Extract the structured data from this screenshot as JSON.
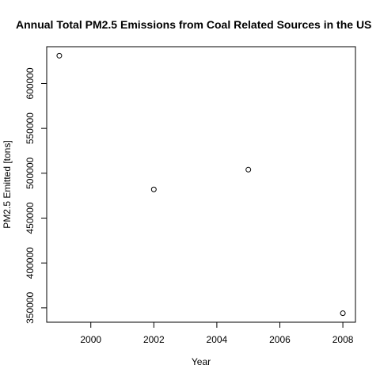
{
  "chart_data": {
    "type": "scatter",
    "title": "Annual Total PM2.5 Emissions from Coal Related Sources in the US",
    "xlabel": "Year",
    "ylabel": "PM2.5 Emitted [tons]",
    "x": [
      1999,
      2002,
      2005,
      2008
    ],
    "y": [
      631000,
      482000,
      504000,
      344000
    ],
    "x_ticks": [
      2000,
      2002,
      2004,
      2006,
      2008
    ],
    "x_tick_labels": [
      "2000",
      "2002",
      "2004",
      "2006",
      "2008"
    ],
    "y_ticks": [
      350000,
      400000,
      450000,
      500000,
      550000,
      600000
    ],
    "y_tick_labels": [
      "350000",
      "400000",
      "450000",
      "500000",
      "550000",
      "600000"
    ],
    "xlim": [
      1998.6,
      2008.4
    ],
    "ylim": [
      334000,
      641000
    ],
    "grid": false,
    "legend": "none",
    "colors": {
      "axis": "#000000",
      "points": "#000000",
      "background": "#ffffff"
    }
  }
}
